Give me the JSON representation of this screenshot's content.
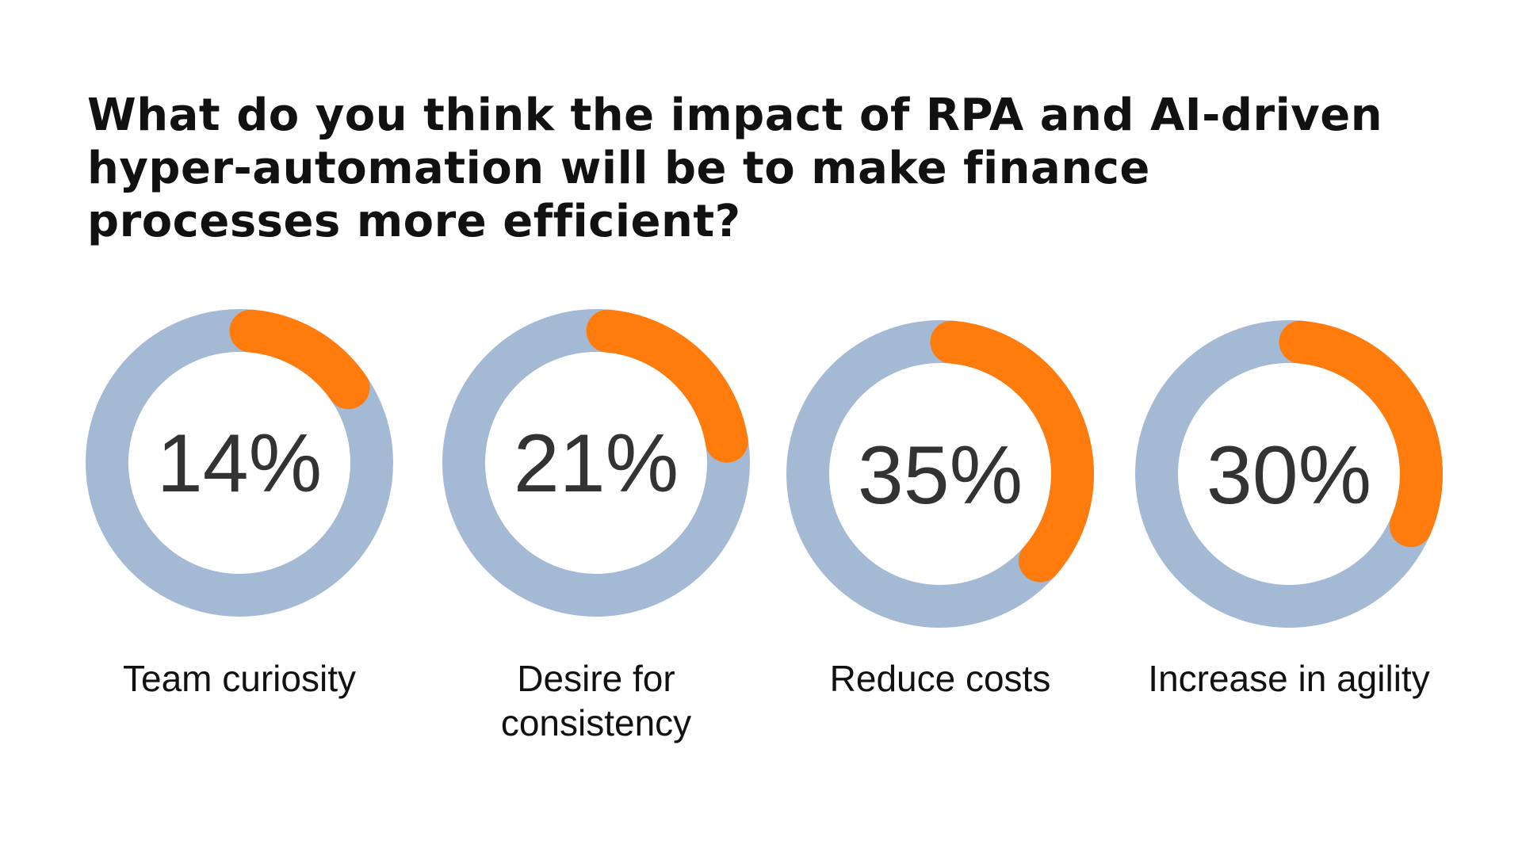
{
  "title": "What do you think the impact of RPA and AI-driven hyper-automation will be to make finance processes more efficient?",
  "colors": {
    "track": "#a3b9d4",
    "accent": "#ff7b0c",
    "text": "#333333",
    "background": "#ffffff"
  },
  "chart_data": {
    "type": "donut",
    "unit": "%",
    "categories": [
      "Team curiosity",
      "Desire for consistency",
      "Reduce costs",
      "Increase in agility"
    ],
    "values": [
      14,
      21,
      35,
      30
    ],
    "value_labels": [
      "14%",
      "21%",
      "35%",
      "30%"
    ]
  }
}
